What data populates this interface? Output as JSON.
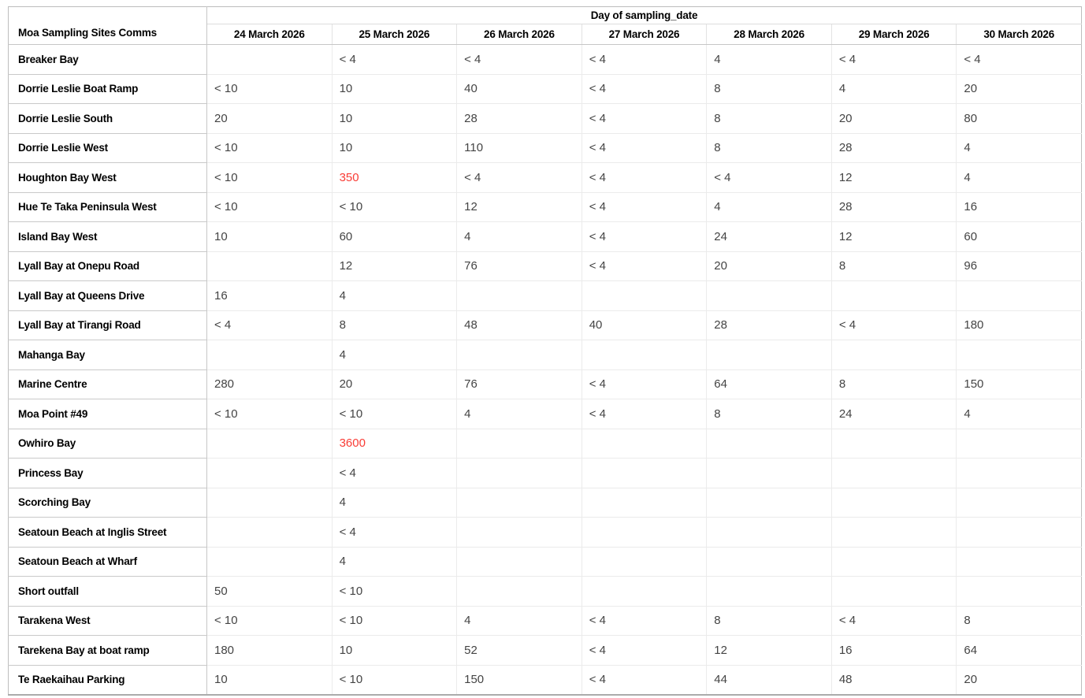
{
  "chart_data": {
    "type": "table",
    "title": "Day of sampling_date",
    "row_dimension_label": "Moa Sampling Sites Comms",
    "columns": [
      "24 March 2026",
      "25 March 2026",
      "26 March 2026",
      "27 March 2026",
      "28 March 2026",
      "29 March 2026",
      "30 March 2026"
    ],
    "rows": [
      {
        "site": "Breaker Bay",
        "values": [
          null,
          "< 4",
          "< 4",
          "< 4",
          "4",
          "< 4",
          "< 4"
        ],
        "alert_indices": []
      },
      {
        "site": "Dorrie Leslie Boat Ramp",
        "values": [
          "< 10",
          "10",
          "40",
          "< 4",
          "8",
          "4",
          "20"
        ],
        "alert_indices": []
      },
      {
        "site": "Dorrie Leslie South",
        "values": [
          "20",
          "10",
          "28",
          "< 4",
          "8",
          "20",
          "80"
        ],
        "alert_indices": []
      },
      {
        "site": "Dorrie Leslie West",
        "values": [
          "< 10",
          "10",
          "110",
          "< 4",
          "8",
          "28",
          "4"
        ],
        "alert_indices": []
      },
      {
        "site": "Houghton Bay West",
        "values": [
          "< 10",
          "350",
          "< 4",
          "< 4",
          "< 4",
          "12",
          "4"
        ],
        "alert_indices": [
          1
        ]
      },
      {
        "site": "Hue Te Taka Peninsula West",
        "values": [
          "< 10",
          "< 10",
          "12",
          "< 4",
          "4",
          "28",
          "16"
        ],
        "alert_indices": []
      },
      {
        "site": "Island Bay West",
        "values": [
          "10",
          "60",
          "4",
          "< 4",
          "24",
          "12",
          "60"
        ],
        "alert_indices": []
      },
      {
        "site": "Lyall Bay at Onepu Road",
        "values": [
          null,
          "12",
          "76",
          "< 4",
          "20",
          "8",
          "96"
        ],
        "alert_indices": []
      },
      {
        "site": "Lyall Bay at Queens Drive",
        "values": [
          "16",
          "4",
          null,
          null,
          null,
          null,
          null
        ],
        "alert_indices": []
      },
      {
        "site": "Lyall Bay at Tirangi Road",
        "values": [
          "< 4",
          "8",
          "48",
          "40",
          "28",
          "< 4",
          "180"
        ],
        "alert_indices": []
      },
      {
        "site": "Mahanga Bay",
        "values": [
          null,
          "4",
          null,
          null,
          null,
          null,
          null
        ],
        "alert_indices": []
      },
      {
        "site": "Marine Centre",
        "values": [
          "280",
          "20",
          "76",
          "< 4",
          "64",
          "8",
          "150"
        ],
        "alert_indices": []
      },
      {
        "site": "Moa Point #49",
        "values": [
          "< 10",
          "< 10",
          "4",
          "< 4",
          "8",
          "24",
          "4"
        ],
        "alert_indices": []
      },
      {
        "site": "Owhiro Bay",
        "values": [
          null,
          "3600",
          null,
          null,
          null,
          null,
          null
        ],
        "alert_indices": [
          1
        ]
      },
      {
        "site": "Princess Bay",
        "values": [
          null,
          "< 4",
          null,
          null,
          null,
          null,
          null
        ],
        "alert_indices": []
      },
      {
        "site": "Scorching Bay",
        "values": [
          null,
          "4",
          null,
          null,
          null,
          null,
          null
        ],
        "alert_indices": []
      },
      {
        "site": "Seatoun Beach at Inglis Street",
        "values": [
          null,
          "< 4",
          null,
          null,
          null,
          null,
          null
        ],
        "alert_indices": []
      },
      {
        "site": "Seatoun Beach at Wharf",
        "values": [
          null,
          "4",
          null,
          null,
          null,
          null,
          null
        ],
        "alert_indices": []
      },
      {
        "site": "Short outfall",
        "values": [
          "50",
          "< 10",
          null,
          null,
          null,
          null,
          null
        ],
        "alert_indices": []
      },
      {
        "site": "Tarakena West",
        "values": [
          "< 10",
          "< 10",
          "4",
          "< 4",
          "8",
          "< 4",
          "8"
        ],
        "alert_indices": []
      },
      {
        "site": "Tarekena Bay at boat ramp",
        "values": [
          "180",
          "10",
          "52",
          "< 4",
          "12",
          "16",
          "64"
        ],
        "alert_indices": []
      },
      {
        "site": "Te Raekaihau Parking",
        "values": [
          "10",
          "< 10",
          "150",
          "< 4",
          "44",
          "48",
          "20"
        ],
        "alert_indices": []
      }
    ],
    "colors": {
      "alert_value": "#f93c35",
      "value_text": "#444444",
      "header_text": "#000000"
    },
    "layout": {
      "grid": "on",
      "legend": "none",
      "empty_cell_rendering": "blank"
    }
  }
}
